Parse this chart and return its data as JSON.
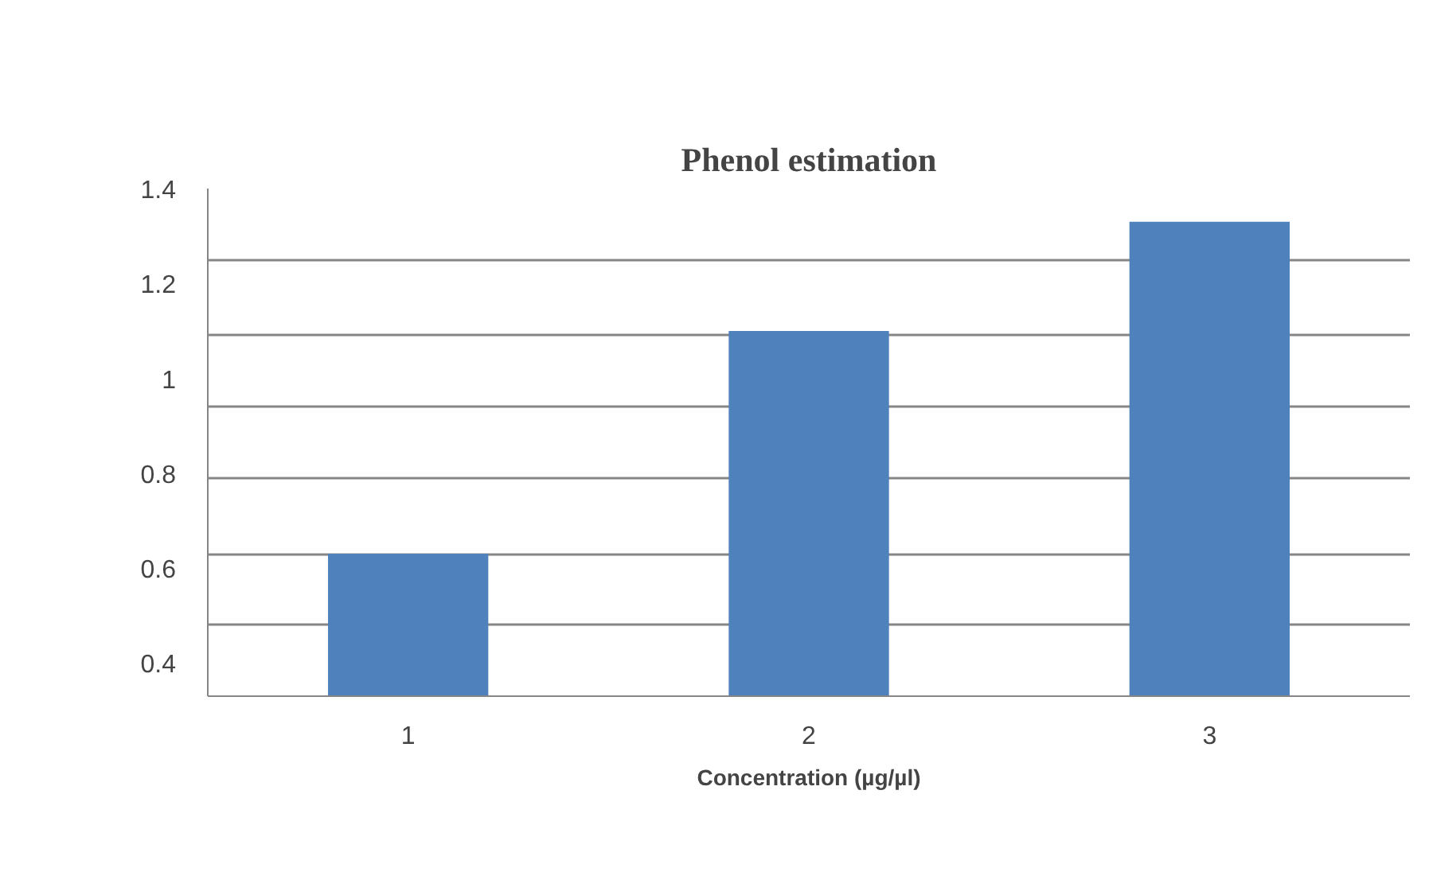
{
  "chart_data": {
    "type": "bar",
    "title": "Phenol estimation",
    "xlabel": "Concentration (µg/µl)",
    "categories": [
      "1",
      "2",
      "3"
    ],
    "values": [
      0.63,
      1.1,
      1.33
    ],
    "color": "#4f81bd",
    "ylim": [
      0.33,
      1.4
    ],
    "yticks": [
      1.4,
      {
        "value": 1.25,
        "label": null
      },
      1.2,
      {
        "value": 1.09,
        "label": null
      },
      1,
      {
        "value": 0.94,
        "label": null
      },
      0.8,
      {
        "value": 0.79,
        "label": null
      },
      0.6,
      {
        "value": 0.63,
        "label": null
      },
      {
        "value": 0.48,
        "label": null
      },
      0.4
    ],
    "grid": "y"
  }
}
